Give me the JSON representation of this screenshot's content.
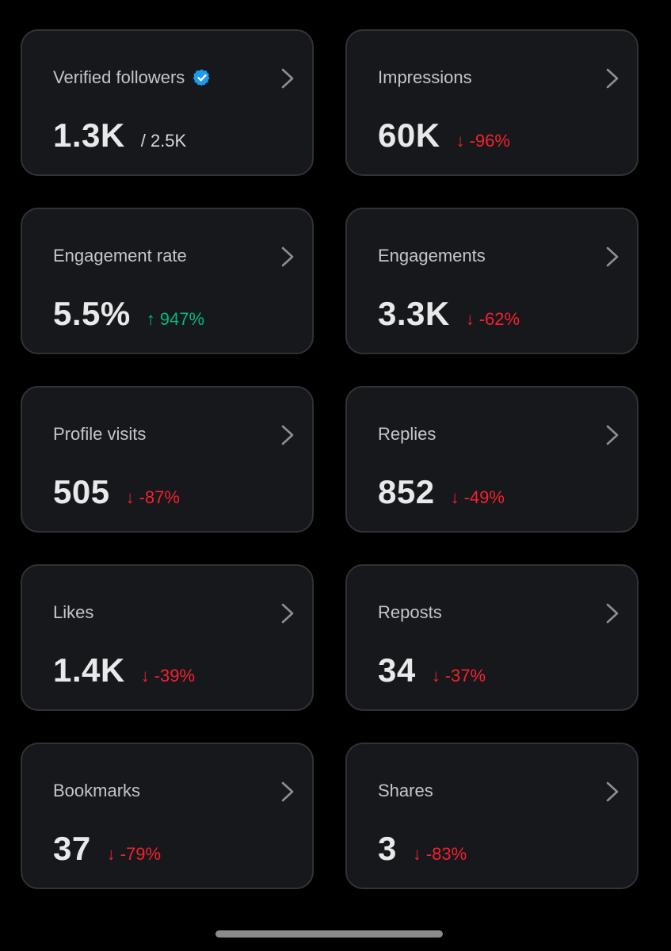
{
  "colors": {
    "background": "#000000",
    "card_bg": "#16181c",
    "card_border": "#2f3336",
    "negative": "#f4212e",
    "positive": "#00ba7c",
    "verified": "#1d9bf0"
  },
  "cards": [
    {
      "label": "Verified followers",
      "icon": "verified-badge-icon",
      "value": "1.3K",
      "total": "/ 2.5K",
      "change": "",
      "direction": ""
    },
    {
      "label": "Impressions",
      "value": "60K",
      "change": "-96%",
      "direction": "down"
    },
    {
      "label": "Engagement rate",
      "value": "5.5%",
      "change": "947%",
      "direction": "up"
    },
    {
      "label": "Engagements",
      "value": "3.3K",
      "change": "-62%",
      "direction": "down"
    },
    {
      "label": "Profile visits",
      "value": "505",
      "change": "-87%",
      "direction": "down"
    },
    {
      "label": "Replies",
      "value": "852",
      "change": "-49%",
      "direction": "down"
    },
    {
      "label": "Likes",
      "value": "1.4K",
      "change": "-39%",
      "direction": "down"
    },
    {
      "label": "Reposts",
      "value": "34",
      "change": "-37%",
      "direction": "down"
    },
    {
      "label": "Bookmarks",
      "value": "37",
      "change": "-79%",
      "direction": "down"
    },
    {
      "label": "Shares",
      "value": "3",
      "change": "-83%",
      "direction": "down"
    }
  ]
}
